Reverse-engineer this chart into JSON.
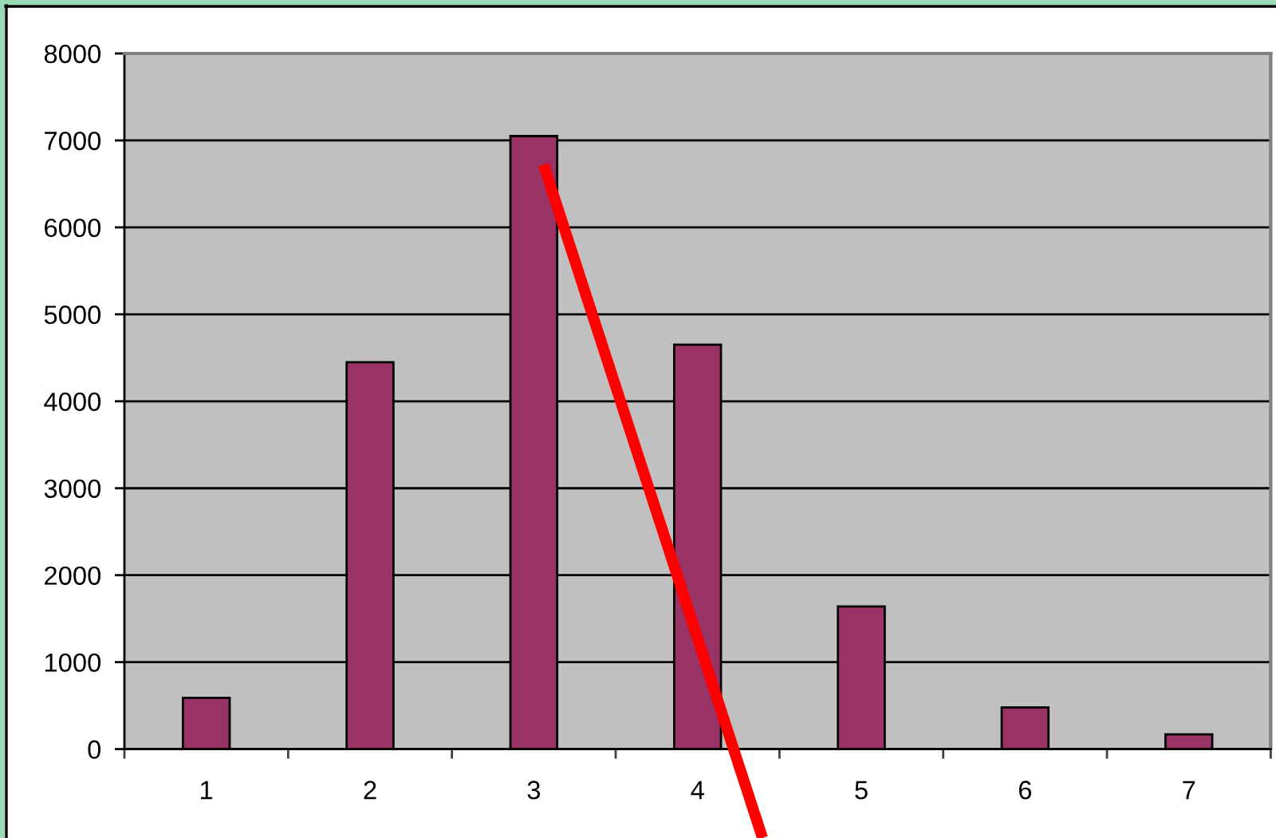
{
  "chart_data": {
    "type": "bar",
    "x": [
      1,
      2,
      3,
      4,
      5,
      6,
      7
    ],
    "series": [
      {
        "color": "#993366",
        "values": [
          590,
          4450,
          7050,
          4650,
          1640,
          480,
          170
        ]
      },
      {
        "type": "line",
        "color": "#ff0000",
        "x": [
          3.06,
          4.22
        ],
        "values": [
          6720,
          0
        ]
      }
    ],
    "xlim": [
      0.5,
      7.5
    ],
    "xticks": [
      {
        "value": 0.5,
        "label": null
      },
      1,
      {
        "value": 1.5,
        "label": null
      },
      2,
      {
        "value": 2.5,
        "label": null
      },
      3,
      {
        "value": 3.5,
        "label": null
      },
      4,
      {
        "value": 4.5,
        "label": null
      },
      5,
      {
        "value": 5.5,
        "label": null
      },
      6,
      {
        "value": 6.5,
        "label": null
      },
      7,
      {
        "value": 7.5,
        "label": null
      }
    ],
    "ylim": [
      0,
      8000
    ],
    "yticks": [
      0,
      1000,
      2000,
      3000,
      4000,
      5000,
      6000,
      7000,
      8000
    ],
    "grid": "y",
    "line_style": "solid"
  }
}
